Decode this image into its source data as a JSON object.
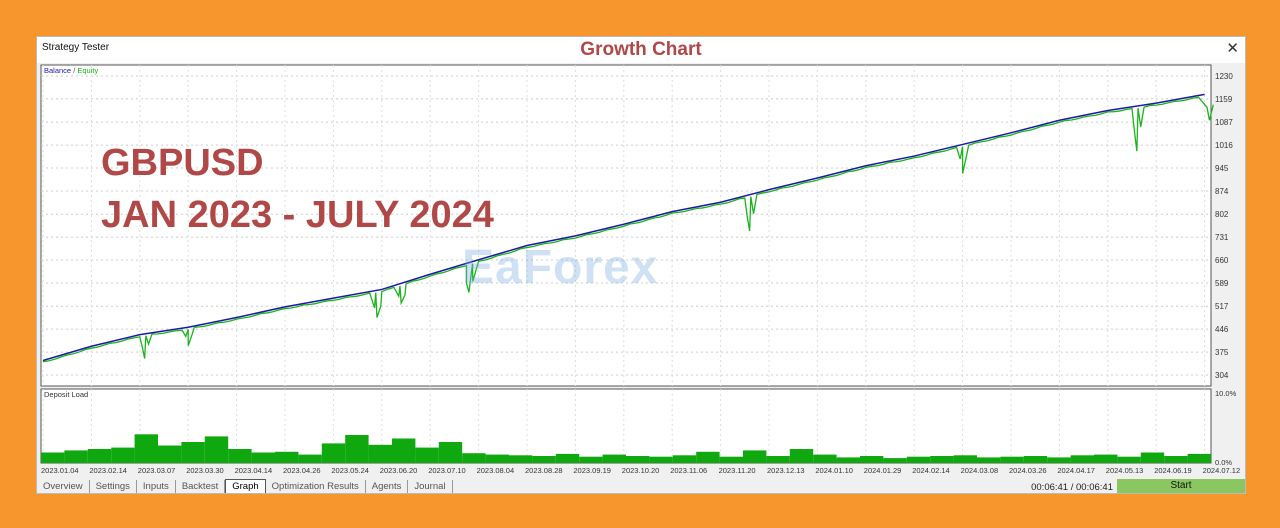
{
  "window": {
    "title": "Strategy Tester",
    "heading": "Growth Chart",
    "close": "✕"
  },
  "overlay": {
    "line1": "GBPUSD",
    "line2": "JAN 2023 - JULY 2024"
  },
  "watermark": "EaForex",
  "tabs": [
    {
      "label": "Overview"
    },
    {
      "label": "Settings"
    },
    {
      "label": "Inputs"
    },
    {
      "label": "Backtest"
    },
    {
      "label": "Graph",
      "active": true
    },
    {
      "label": "Optimization Results"
    },
    {
      "label": "Agents"
    },
    {
      "label": "Journal"
    }
  ],
  "status": {
    "timer": "00:06:41 / 00:06:41",
    "start": "Start"
  },
  "chart_data": [
    {
      "type": "line",
      "legend": {
        "balance": "Balance",
        "sep": " / ",
        "equity": "Equity"
      },
      "colors": {
        "balance": "#1a1aa8",
        "equity": "#1bb31b"
      },
      "ylim": [
        304,
        1230
      ],
      "yticks": [
        "1230",
        "1159",
        "1087",
        "1016",
        "945",
        "874",
        "802",
        "731",
        "660",
        "589",
        "517",
        "446",
        "375",
        "304"
      ],
      "xticks": [
        "2023.01.04",
        "2023.02.14",
        "2023.03.07",
        "2023.03.30",
        "2023.04.14",
        "2023.04.26",
        "2023.05.24",
        "2023.06.20",
        "2023.07.10",
        "2023.08.04",
        "2023.08.28",
        "2023.09.19",
        "2023.10.20",
        "2023.11.06",
        "2023.11.20",
        "2023.12.13",
        "2024.01.10",
        "2024.01.29",
        "2024.02.14",
        "2024.03.08",
        "2024.03.26",
        "2024.04.17",
        "2024.05.13",
        "2024.06.19",
        "2024.07.12"
      ],
      "balance": [
        349,
        393,
        429,
        452,
        482,
        515,
        542,
        569,
        616,
        661,
        705,
        735,
        771,
        810,
        839,
        878,
        914,
        952,
        982,
        1018,
        1054,
        1093,
        1123,
        1146,
        1173
      ],
      "equity_dips": [
        [
          2.1,
          355
        ],
        [
          3.0,
          395
        ],
        [
          6.9,
          482
        ],
        [
          7.4,
          527
        ],
        [
          8.8,
          560
        ],
        [
          14.6,
          750
        ],
        [
          19.0,
          928
        ],
        [
          22.6,
          997
        ],
        [
          24.1,
          1093
        ]
      ],
      "grid": true
    },
    {
      "type": "area",
      "title": "Deposit Load",
      "color": "#0fa80f",
      "ylim": [
        0,
        10
      ],
      "yticks": [
        "10.0%",
        "0.0%"
      ],
      "values": [
        1.5,
        1.8,
        2.0,
        2.2,
        4.1,
        2.5,
        3.0,
        3.8,
        2.0,
        1.5,
        1.6,
        1.2,
        2.8,
        4.0,
        2.6,
        3.5,
        2.2,
        3.0,
        1.4,
        1.2,
        1.1,
        1.0,
        1.3,
        0.9,
        1.2,
        1.0,
        0.9,
        1.1,
        1.6,
        0.9,
        1.8,
        1.0,
        2.0,
        1.2,
        0.8,
        1.0,
        0.7,
        0.9,
        1.0,
        1.1,
        0.8,
        0.9,
        1.0,
        0.8,
        1.1,
        1.2,
        0.9,
        1.5,
        1.0,
        1.3
      ]
    }
  ]
}
